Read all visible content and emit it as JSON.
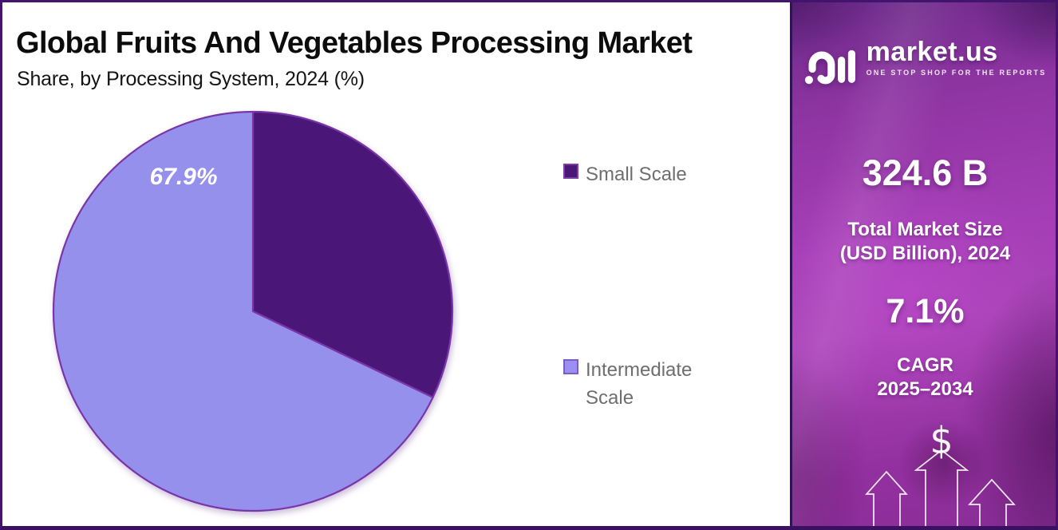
{
  "chart_data": {
    "type": "pie",
    "title": "Global Fruits And Vegetables Processing Market",
    "subtitle": "Share, by Processing System, 2024 (%)",
    "start_angle": "top, clockwise",
    "legend_position": "right",
    "slices": [
      {
        "label": "Small Scale",
        "value": 32.1,
        "color": "#4a1778",
        "data_label": ""
      },
      {
        "label": "Intermediate Scale",
        "value": 67.9,
        "color": "#9490ec",
        "data_label": "67.9%"
      }
    ],
    "data_label_color": "#ffffff",
    "pie_stroke_color": "#7a35a8"
  },
  "legend": {
    "items": [
      {
        "label": "Small Scale",
        "color": "#4a1778"
      },
      {
        "label": "Intermediate Scale",
        "color": "#9b8ff2"
      }
    ]
  },
  "sidebar": {
    "logo_name": "market.us",
    "logo_tagline": "ONE STOP SHOP FOR THE REPORTS",
    "market_size_value": "324.6 B",
    "market_size_label_line1": "Total Market Size",
    "market_size_label_line2": "(USD Billion), 2024",
    "cagr_value": "7.1%",
    "cagr_label_line1": "CAGR",
    "cagr_label_line2": "2025–2034",
    "dollar_symbol": "$",
    "accent_background": "#a53eb6"
  }
}
